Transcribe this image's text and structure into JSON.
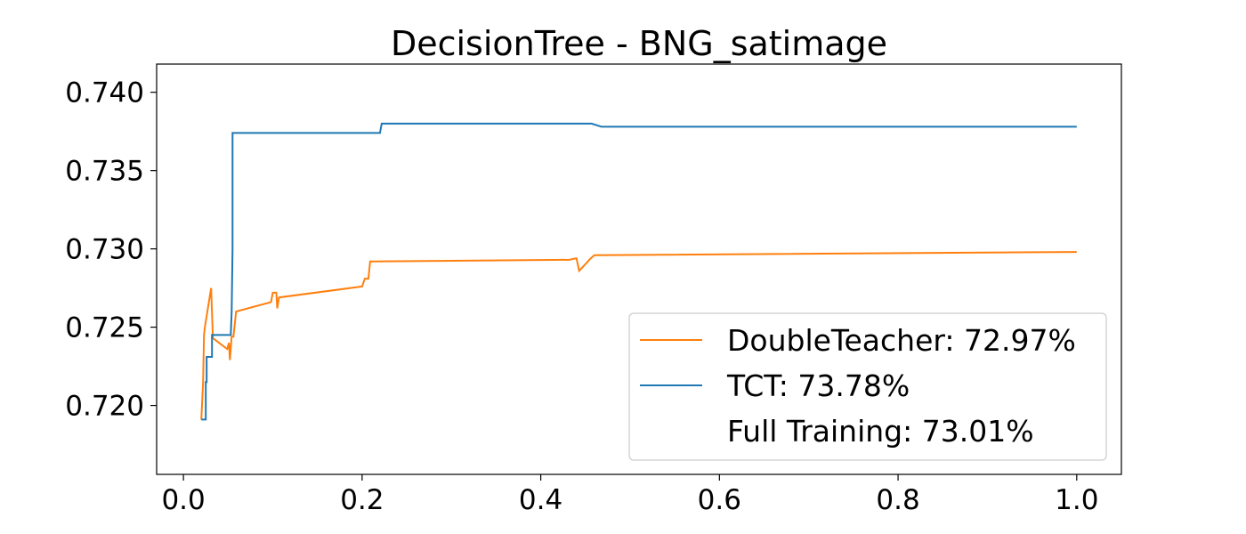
{
  "chart_data": {
    "type": "line",
    "title": "DecisionTree - BNG_satimage",
    "xlabel": "",
    "ylabel": "",
    "xlim": [
      -0.03,
      1.05
    ],
    "ylim": [
      0.7156,
      0.7418
    ],
    "x_ticks": [
      0.0,
      0.2,
      0.4,
      0.6,
      0.8,
      1.0
    ],
    "x_tick_labels": [
      "0.0",
      "0.2",
      "0.4",
      "0.6",
      "0.8",
      "1.0"
    ],
    "y_ticks": [
      0.72,
      0.725,
      0.73,
      0.735,
      0.74
    ],
    "y_tick_labels": [
      "0.720",
      "0.725",
      "0.730",
      "0.735",
      "0.740"
    ],
    "grid": false,
    "legend_position": "lower-right",
    "series": [
      {
        "name": "DoubleTeacher: 72.97%",
        "color": "#ff7f0e",
        "x": [
          0.02,
          0.022,
          0.023,
          0.024,
          0.031,
          0.033,
          0.049,
          0.051,
          0.052,
          0.054,
          0.056,
          0.059,
          0.098,
          0.1,
          0.104,
          0.105,
          0.107,
          0.2,
          0.203,
          0.207,
          0.209,
          0.211,
          0.432,
          0.44,
          0.443,
          0.456,
          0.46,
          1.0
        ],
        "y": [
          0.7191,
          0.7215,
          0.7245,
          0.725,
          0.7275,
          0.7243,
          0.7236,
          0.724,
          0.7229,
          0.7244,
          0.7244,
          0.726,
          0.7266,
          0.7272,
          0.7272,
          0.7262,
          0.7269,
          0.7276,
          0.7281,
          0.7281,
          0.7292,
          0.7292,
          0.7293,
          0.7294,
          0.7286,
          0.7294,
          0.7296,
          0.7298
        ]
      },
      {
        "name": "TCT: 73.78%",
        "color": "#1f77b4",
        "x": [
          0.02,
          0.025,
          0.025,
          0.026,
          0.026,
          0.032,
          0.032,
          0.053,
          0.054,
          0.055,
          0.055,
          0.22,
          0.222,
          0.457,
          0.468,
          1.0
        ],
        "y": [
          0.7191,
          0.7191,
          0.7215,
          0.7215,
          0.7231,
          0.7231,
          0.7245,
          0.7245,
          0.726,
          0.73,
          0.7374,
          0.7374,
          0.738,
          0.738,
          0.7378,
          0.7378
        ]
      },
      {
        "name": "Full Training: 73.01%",
        "color": "#ffffff",
        "x": [],
        "y": []
      }
    ]
  }
}
